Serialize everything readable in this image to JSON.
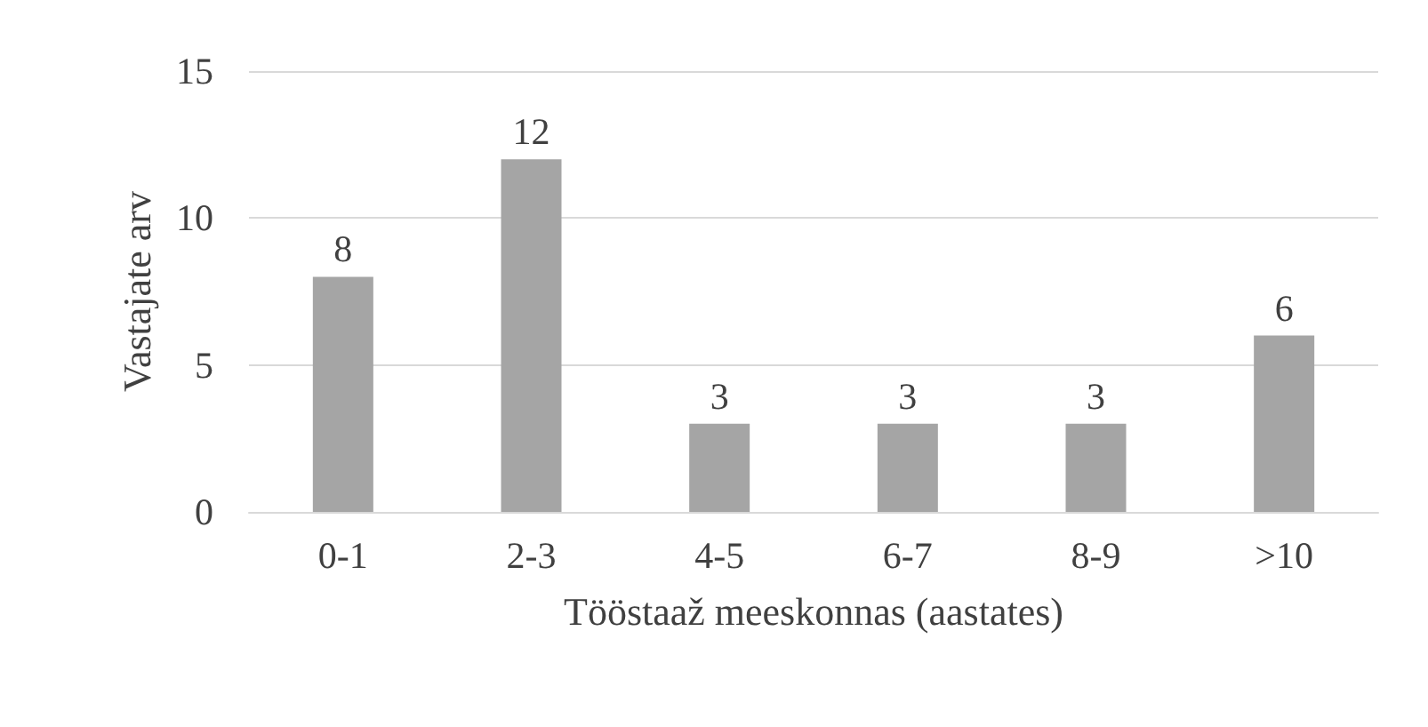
{
  "chart_data": {
    "type": "bar",
    "xlabel": "Tööstaaž meeskonnas (aastates)",
    "ylabel": "Vastajate arv",
    "categories": [
      "0-1",
      "2-3",
      "4-5",
      "6-7",
      "8-9",
      ">10"
    ],
    "values": [
      8,
      12,
      3,
      3,
      3,
      6
    ],
    "color": "#a5a5a5",
    "ylim": [
      0,
      15
    ],
    "yticks": [
      0,
      5,
      10,
      15
    ],
    "grid": "y",
    "data_labels": true
  }
}
